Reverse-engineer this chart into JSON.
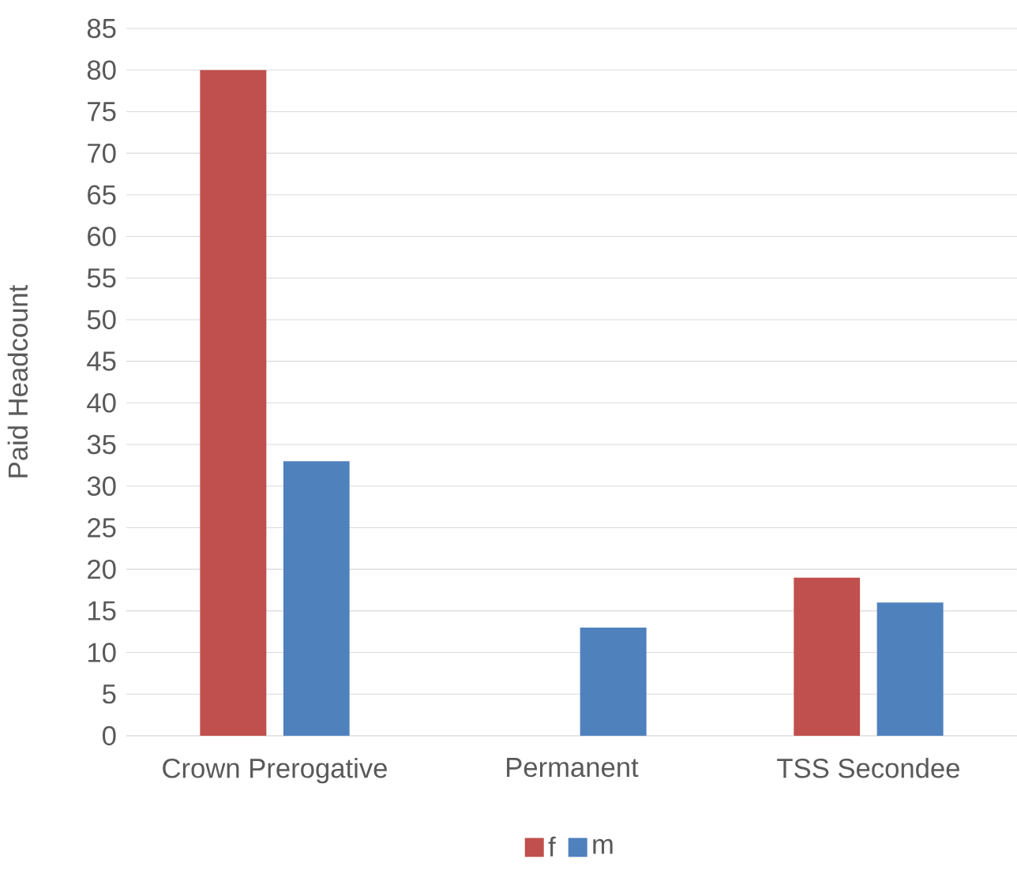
{
  "chart_data": {
    "type": "bar",
    "ylabel": "Paid Headcount",
    "categories": [
      "Crown Prerogative",
      "Permanent",
      "TSS Secondee"
    ],
    "series": [
      {
        "name": "f",
        "color": "#c0504d",
        "values": [
          80,
          null,
          19
        ]
      },
      {
        "name": "m",
        "color": "#4f81bd",
        "values": [
          33,
          13,
          16
        ]
      }
    ],
    "ylim": [
      0,
      85
    ],
    "yticks": [
      0,
      5,
      10,
      15,
      20,
      25,
      30,
      35,
      40,
      45,
      50,
      55,
      60,
      65,
      70,
      75,
      80,
      85
    ],
    "grid": "y",
    "legend": "bottom"
  }
}
